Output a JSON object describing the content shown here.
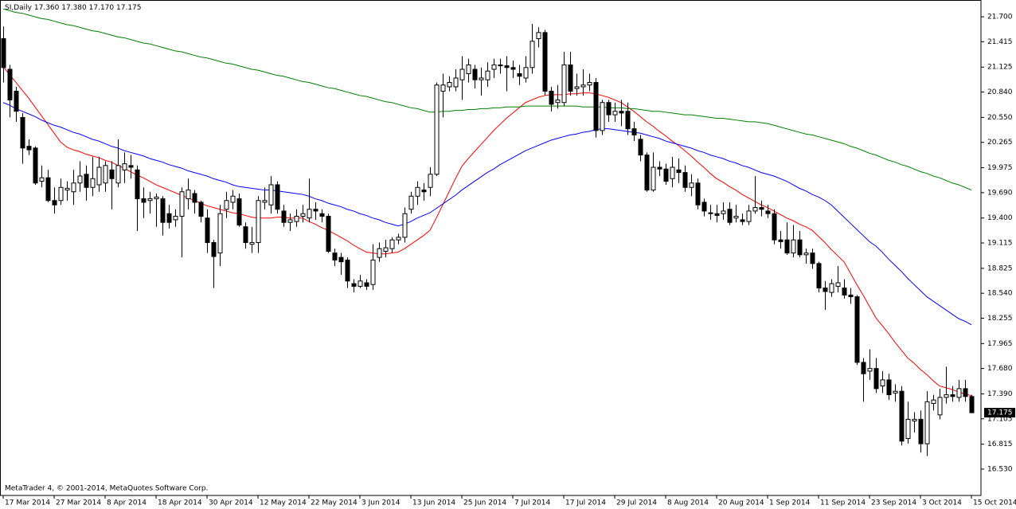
{
  "chart_data": {
    "type": "candlestick",
    "title": "SI,Daily",
    "header_values": [
      "17.360",
      "17.380",
      "17.170",
      "17.175"
    ],
    "watermark": "MetaTrader 4, © 2001-2014, MetaQuotes Software Corp.",
    "current_price": {
      "value": 17.175,
      "label": "17.175"
    },
    "up_color": "#ffffff",
    "down_color": "#000000",
    "ylim": [
      16.229,
      21.892
    ],
    "yticks": [
      {
        "value": 21.7,
        "label": "21.700"
      },
      21.415,
      21.125,
      {
        "value": 20.84,
        "label": "20.840"
      },
      {
        "value": 20.55,
        "label": "20.550"
      },
      20.265,
      19.975,
      {
        "value": 19.69,
        "label": "19.690"
      },
      {
        "value": 19.4,
        "label": "19.400"
      },
      19.115,
      18.825,
      {
        "value": 18.54,
        "label": "18.540"
      },
      18.255,
      17.965,
      {
        "value": 17.68,
        "label": "17.680"
      },
      {
        "value": 17.39,
        "label": "17.390"
      },
      17.105,
      16.815,
      {
        "value": 16.53,
        "label": "16.530"
      }
    ],
    "categories": [
      "17 Mar 2014",
      null,
      null,
      null,
      null,
      null,
      null,
      null,
      "27 Mar 2014",
      null,
      null,
      null,
      null,
      null,
      null,
      null,
      "8 Apr 2014",
      null,
      null,
      null,
      null,
      null,
      null,
      null,
      "18 Apr 2014",
      null,
      null,
      null,
      null,
      null,
      null,
      null,
      "30 Apr 2014",
      null,
      null,
      null,
      null,
      null,
      null,
      null,
      "12 May 2014",
      null,
      null,
      null,
      null,
      null,
      null,
      null,
      "22 May 2014",
      null,
      null,
      null,
      null,
      null,
      null,
      null,
      "3 Jun 2014",
      null,
      null,
      null,
      null,
      null,
      null,
      null,
      "13 Jun 2014",
      null,
      null,
      null,
      null,
      null,
      null,
      null,
      "25 Jun 2014",
      null,
      null,
      null,
      null,
      null,
      null,
      null,
      "7 Jul 2014",
      null,
      null,
      null,
      null,
      null,
      null,
      null,
      "17 Jul 2014",
      null,
      null,
      null,
      null,
      null,
      null,
      null,
      "29 Jul 2014",
      null,
      null,
      null,
      null,
      null,
      null,
      null,
      "8 Aug 2014",
      null,
      null,
      null,
      null,
      null,
      null,
      null,
      "20 Aug 2014",
      null,
      null,
      null,
      null,
      null,
      null,
      null,
      "1 Sep 2014",
      null,
      null,
      null,
      null,
      null,
      null,
      null,
      "11 Sep 2014",
      null,
      null,
      null,
      null,
      null,
      null,
      null,
      "23 Sep 2014",
      null,
      null,
      null,
      null,
      null,
      null,
      null,
      "3 Oct 2014",
      null,
      null,
      null,
      null,
      null,
      null,
      null,
      "15 Oct 2014"
    ],
    "open": [
      21.45,
      21.1,
      20.85,
      20.55,
      20.22,
      20.2,
      19.82,
      19.86,
      19.6,
      19.6,
      19.72,
      19.7,
      19.8,
      19.9,
      19.75,
      19.78,
      19.8,
      19.95,
      19.8,
      19.95,
      20.0,
      19.95,
      19.62,
      19.6,
      19.62,
      19.62,
      19.45,
      19.38,
      19.42,
      19.62,
      19.68,
      19.58,
      19.4,
      19.12,
      19.0,
      19.5,
      19.58,
      19.62,
      19.3,
      19.1,
      19.12,
      19.58,
      19.55,
      19.78,
      19.48,
      19.35,
      19.36,
      19.42,
      19.4,
      19.5,
      19.45,
      19.42,
      19.0,
      18.95,
      18.92,
      18.65,
      18.62,
      18.66,
      18.64,
      18.95,
      19.02,
      19.05,
      19.15,
      19.18,
      19.5,
      19.65,
      19.72,
      19.75,
      19.9,
      20.85,
      20.9,
      20.9,
      20.98,
      21.05,
      21.1,
      20.98,
      20.98,
      21.1,
      21.15,
      21.14,
      21.12,
      21.05,
      21.0,
      21.12,
      21.45,
      21.52,
      20.85,
      20.72,
      20.72,
      21.15,
      20.88,
      20.9,
      20.92,
      20.95,
      20.4,
      20.72,
      20.58,
      20.62,
      20.62,
      20.42,
      20.3,
      20.12,
      19.72,
      19.98,
      19.96,
      19.85,
      19.95,
      19.92,
      19.75,
      19.8,
      19.58,
      19.46,
      19.45,
      19.45,
      19.5,
      19.4,
      19.38,
      19.36,
      19.48,
      19.52,
      19.48,
      19.45,
      19.15,
      19.15,
      19.0,
      19.15,
      18.98,
      19.0,
      18.88,
      18.6,
      18.55,
      18.62,
      18.6,
      18.52,
      18.5,
      17.75,
      17.65,
      17.68,
      17.48,
      17.55,
      17.4,
      17.42,
      16.88,
      17.08,
      17.1,
      16.82,
      17.28,
      17.15,
      17.35,
      17.38,
      17.35,
      17.45,
      17.36
    ],
    "high": [
      21.59,
      21.15,
      20.9,
      20.6,
      20.3,
      20.22,
      20.0,
      19.95,
      19.75,
      19.85,
      19.82,
      19.95,
      20.05,
      20.0,
      20.1,
      20.1,
      20.05,
      20.05,
      20.3,
      20.15,
      20.12,
      20.0,
      19.75,
      19.7,
      19.68,
      19.65,
      19.55,
      19.5,
      19.75,
      19.85,
      19.72,
      19.6,
      19.5,
      19.15,
      19.55,
      19.7,
      19.72,
      19.68,
      19.35,
      19.3,
      19.65,
      19.75,
      19.88,
      19.82,
      19.55,
      19.45,
      19.5,
      19.55,
      19.85,
      19.58,
      19.5,
      19.45,
      19.05,
      19.0,
      18.95,
      18.7,
      18.75,
      18.7,
      19.1,
      19.12,
      19.15,
      19.18,
      19.22,
      19.52,
      19.7,
      19.82,
      19.8,
      19.98,
      20.95,
      21.05,
      21.02,
      21.1,
      21.25,
      21.22,
      21.15,
      21.12,
      21.18,
      21.22,
      21.22,
      21.25,
      21.2,
      21.15,
      21.25,
      21.62,
      21.58,
      21.55,
      20.9,
      20.92,
      21.3,
      21.3,
      21.05,
      21.1,
      21.05,
      21.0,
      20.75,
      20.75,
      20.72,
      20.75,
      20.72,
      20.5,
      20.35,
      20.15,
      20.15,
      20.05,
      20.02,
      20.1,
      20.08,
      20.0,
      19.9,
      19.85,
      19.62,
      19.55,
      19.55,
      19.58,
      19.58,
      19.55,
      19.45,
      19.55,
      19.88,
      19.6,
      19.55,
      19.5,
      19.25,
      19.35,
      19.32,
      19.25,
      19.05,
      19.05,
      18.9,
      18.68,
      18.7,
      18.85,
      18.7,
      18.6,
      18.52,
      17.8,
      17.9,
      17.8,
      17.65,
      17.62,
      17.5,
      17.48,
      17.3,
      17.18,
      17.2,
      17.42,
      17.38,
      17.45,
      17.7,
      17.48,
      17.55,
      17.55,
      17.38
    ],
    "low": [
      20.95,
      20.55,
      20.5,
      20.02,
      20.12,
      19.78,
      19.75,
      19.58,
      19.45,
      19.55,
      19.6,
      19.55,
      19.7,
      19.6,
      19.65,
      19.7,
      19.7,
      19.5,
      19.75,
      19.8,
      19.85,
      19.25,
      19.4,
      19.45,
      19.3,
      19.2,
      19.28,
      19.3,
      18.95,
      19.5,
      19.45,
      19.35,
      19.0,
      18.6,
      18.85,
      19.4,
      19.5,
      19.3,
      19.05,
      19.0,
      19.0,
      19.5,
      19.45,
      19.45,
      19.3,
      19.25,
      19.3,
      19.35,
      19.35,
      19.38,
      19.35,
      19.0,
      18.85,
      18.75,
      18.6,
      18.55,
      18.6,
      18.58,
      18.58,
      18.9,
      18.95,
      19.0,
      19.1,
      19.12,
      19.45,
      19.55,
      19.6,
      19.65,
      19.88,
      20.55,
      20.85,
      20.85,
      20.75,
      20.95,
      20.88,
      20.8,
      20.9,
      21.0,
      21.05,
      20.85,
      21.0,
      20.92,
      20.95,
      21.05,
      21.35,
      20.8,
      20.62,
      20.65,
      20.68,
      20.8,
      20.8,
      20.8,
      20.85,
      20.32,
      20.35,
      20.5,
      20.5,
      20.45,
      20.35,
      20.28,
      20.05,
      19.7,
      19.7,
      19.88,
      19.78,
      19.75,
      19.8,
      19.7,
      19.65,
      19.5,
      19.42,
      19.38,
      19.35,
      19.38,
      19.32,
      19.35,
      19.32,
      19.32,
      19.45,
      19.42,
      19.4,
      19.1,
      19.05,
      18.98,
      18.95,
      18.95,
      18.88,
      18.82,
      18.55,
      18.35,
      18.5,
      18.55,
      18.48,
      18.42,
      17.72,
      17.3,
      17.55,
      17.4,
      17.4,
      17.32,
      17.3,
      16.8,
      16.82,
      16.95,
      16.72,
      16.68,
      17.2,
      17.1,
      17.28,
      17.3,
      17.3,
      17.3,
      17.17
    ],
    "close": [
      21.12,
      20.75,
      20.62,
      20.2,
      20.18,
      19.8,
      19.86,
      19.6,
      19.55,
      19.75,
      19.74,
      19.8,
      19.88,
      19.75,
      19.85,
      19.98,
      20.0,
      19.85,
      20.0,
      20.02,
      19.98,
      19.62,
      19.58,
      19.62,
      19.64,
      19.35,
      19.35,
      19.42,
      19.7,
      19.72,
      19.58,
      19.42,
      19.12,
      18.96,
      19.45,
      19.6,
      19.65,
      19.32,
      19.12,
      19.12,
      19.6,
      19.6,
      19.78,
      19.5,
      19.35,
      19.38,
      19.42,
      19.45,
      19.5,
      19.48,
      19.42,
      19.02,
      18.92,
      18.9,
      18.68,
      18.62,
      18.68,
      18.62,
      18.92,
      19.05,
      19.06,
      19.15,
      19.18,
      19.45,
      19.65,
      19.75,
      19.7,
      19.9,
      20.92,
      20.92,
      20.95,
      21.0,
      21.1,
      21.15,
      20.98,
      21.0,
      21.08,
      21.15,
      21.14,
      21.12,
      21.1,
      21.02,
      21.12,
      21.42,
      21.52,
      20.85,
      20.7,
      20.75,
      21.15,
      20.85,
      20.9,
      20.92,
      20.95,
      20.4,
      20.72,
      20.58,
      20.62,
      20.6,
      20.42,
      20.35,
      20.12,
      19.72,
      19.98,
      19.96,
      19.82,
      19.98,
      19.92,
      19.75,
      19.8,
      19.55,
      19.48,
      19.45,
      19.43,
      19.48,
      19.35,
      19.42,
      19.36,
      19.48,
      19.52,
      19.5,
      19.45,
      19.15,
      19.13,
      19.0,
      19.15,
      18.98,
      19.0,
      18.88,
      18.6,
      18.56,
      18.65,
      18.66,
      18.52,
      18.5,
      17.75,
      17.62,
      17.68,
      17.45,
      17.55,
      17.38,
      17.42,
      16.85,
      17.1,
      17.1,
      16.82,
      17.3,
      17.32,
      17.35,
      17.38,
      17.36,
      17.45,
      17.36,
      17.175
    ],
    "series": [
      {
        "color": "#ff0000",
        "values": [
          21.13,
          21.04,
          20.95,
          20.86,
          20.77,
          20.67,
          20.57,
          20.47,
          20.37,
          20.27,
          20.21,
          20.18,
          20.16,
          20.13,
          20.11,
          20.09,
          20.06,
          20.04,
          20.0,
          19.97,
          19.93,
          19.89,
          19.86,
          19.82,
          19.78,
          19.75,
          19.72,
          19.69,
          19.66,
          19.63,
          19.6,
          19.57,
          19.54,
          19.52,
          19.5,
          19.48,
          19.46,
          19.45,
          19.43,
          19.41,
          19.4,
          19.4,
          19.4,
          19.41,
          19.41,
          19.4,
          19.4,
          19.4,
          19.36,
          19.33,
          19.29,
          19.26,
          19.22,
          19.18,
          19.14,
          19.09,
          19.05,
          19.01,
          19.0,
          18.99,
          18.99,
          19.0,
          19.01,
          19.05,
          19.1,
          19.15,
          19.2,
          19.26,
          19.4,
          19.55,
          19.7,
          19.85,
          19.99,
          20.08,
          20.16,
          20.24,
          20.32,
          20.4,
          20.47,
          20.54,
          20.6,
          20.66,
          20.72,
          20.75,
          20.78,
          20.8,
          20.81,
          20.81,
          20.81,
          20.82,
          20.82,
          20.83,
          20.83,
          20.82,
          20.8,
          20.78,
          20.75,
          20.72,
          20.67,
          20.62,
          20.56,
          20.5,
          20.45,
          20.39,
          20.34,
          20.28,
          20.23,
          20.17,
          20.11,
          20.04,
          19.98,
          19.91,
          19.85,
          19.81,
          19.76,
          19.72,
          19.67,
          19.63,
          19.59,
          19.55,
          19.52,
          19.48,
          19.44,
          19.4,
          19.37,
          19.33,
          19.3,
          19.26,
          19.19,
          19.12,
          19.04,
          18.97,
          18.9,
          18.77,
          18.64,
          18.52,
          18.39,
          18.26,
          18.17,
          18.08,
          17.98,
          17.89,
          17.8,
          17.74,
          17.67,
          17.61,
          17.54,
          17.48,
          17.46,
          17.44,
          17.41,
          17.39,
          17.37
        ]
      },
      {
        "color": "#0000ff",
        "values": [
          20.72,
          20.69,
          20.65,
          20.62,
          20.59,
          20.56,
          20.52,
          20.49,
          20.46,
          20.44,
          20.41,
          20.38,
          20.36,
          20.33,
          20.3,
          20.28,
          20.25,
          20.22,
          20.2,
          20.17,
          20.15,
          20.13,
          20.11,
          20.08,
          20.06,
          20.04,
          20.01,
          19.99,
          19.97,
          19.94,
          19.92,
          19.9,
          19.88,
          19.85,
          19.83,
          19.81,
          19.78,
          19.76,
          19.75,
          19.74,
          19.73,
          19.72,
          19.72,
          19.71,
          19.7,
          19.69,
          19.68,
          19.67,
          19.65,
          19.62,
          19.6,
          19.57,
          19.55,
          19.53,
          19.5,
          19.48,
          19.45,
          19.43,
          19.4,
          19.38,
          19.35,
          19.33,
          19.31,
          19.33,
          19.36,
          19.4,
          19.43,
          19.46,
          19.51,
          19.56,
          19.61,
          19.66,
          19.72,
          19.77,
          19.82,
          19.87,
          19.92,
          19.96,
          20.01,
          20.05,
          20.09,
          20.13,
          20.17,
          20.2,
          20.23,
          20.26,
          20.29,
          20.31,
          20.33,
          20.35,
          20.36,
          20.38,
          20.39,
          20.41,
          20.42,
          20.42,
          20.41,
          20.4,
          20.39,
          20.38,
          20.37,
          20.35,
          20.33,
          20.31,
          20.28,
          20.26,
          20.24,
          20.22,
          20.2,
          20.17,
          20.15,
          20.12,
          20.1,
          20.08,
          20.05,
          20.03,
          20.0,
          19.98,
          19.95,
          19.92,
          19.9,
          19.88,
          19.85,
          19.82,
          19.78,
          19.74,
          19.71,
          19.67,
          19.64,
          19.6,
          19.55,
          19.48,
          19.41,
          19.34,
          19.27,
          19.2,
          19.13,
          19.08,
          19.01,
          18.93,
          18.86,
          18.79,
          18.71,
          18.64,
          18.57,
          18.5,
          18.45,
          18.4,
          18.35,
          18.3,
          18.25,
          18.22,
          18.18
        ]
      },
      {
        "color": "#008000",
        "values": [
          21.79,
          21.77,
          21.75,
          21.74,
          21.72,
          21.7,
          21.68,
          21.67,
          21.65,
          21.63,
          21.61,
          21.6,
          21.58,
          21.56,
          21.54,
          21.53,
          21.51,
          21.49,
          21.47,
          21.46,
          21.44,
          21.42,
          21.4,
          21.39,
          21.37,
          21.35,
          21.33,
          21.31,
          21.3,
          21.28,
          21.26,
          21.24,
          21.23,
          21.21,
          21.19,
          21.17,
          21.16,
          21.14,
          21.12,
          21.1,
          21.09,
          21.07,
          21.05,
          21.03,
          21.02,
          21.0,
          20.98,
          20.96,
          20.95,
          20.93,
          20.91,
          20.89,
          20.88,
          20.86,
          20.84,
          20.82,
          20.8,
          20.79,
          20.77,
          20.75,
          20.73,
          20.72,
          20.7,
          20.68,
          20.66,
          20.65,
          20.63,
          20.61,
          20.61,
          20.62,
          20.62,
          20.63,
          20.63,
          20.64,
          20.64,
          20.65,
          20.65,
          20.66,
          20.66,
          20.67,
          20.67,
          20.67,
          20.68,
          20.68,
          20.68,
          20.68,
          20.68,
          20.68,
          20.68,
          20.68,
          20.68,
          20.67,
          20.67,
          20.67,
          20.67,
          20.66,
          20.66,
          20.66,
          20.65,
          20.65,
          20.64,
          20.63,
          20.62,
          20.62,
          20.61,
          20.6,
          20.59,
          20.58,
          20.58,
          20.57,
          20.56,
          20.55,
          20.54,
          20.54,
          20.53,
          20.52,
          20.51,
          20.5,
          20.5,
          20.49,
          20.48,
          20.46,
          20.44,
          20.42,
          20.4,
          20.38,
          20.36,
          20.35,
          20.33,
          20.31,
          20.29,
          20.27,
          20.25,
          20.22,
          20.2,
          20.17,
          20.14,
          20.12,
          20.09,
          20.06,
          20.04,
          20.01,
          19.99,
          19.96,
          19.93,
          19.91,
          19.88,
          19.86,
          19.83,
          19.8,
          19.78,
          19.75,
          19.72
        ]
      }
    ]
  }
}
